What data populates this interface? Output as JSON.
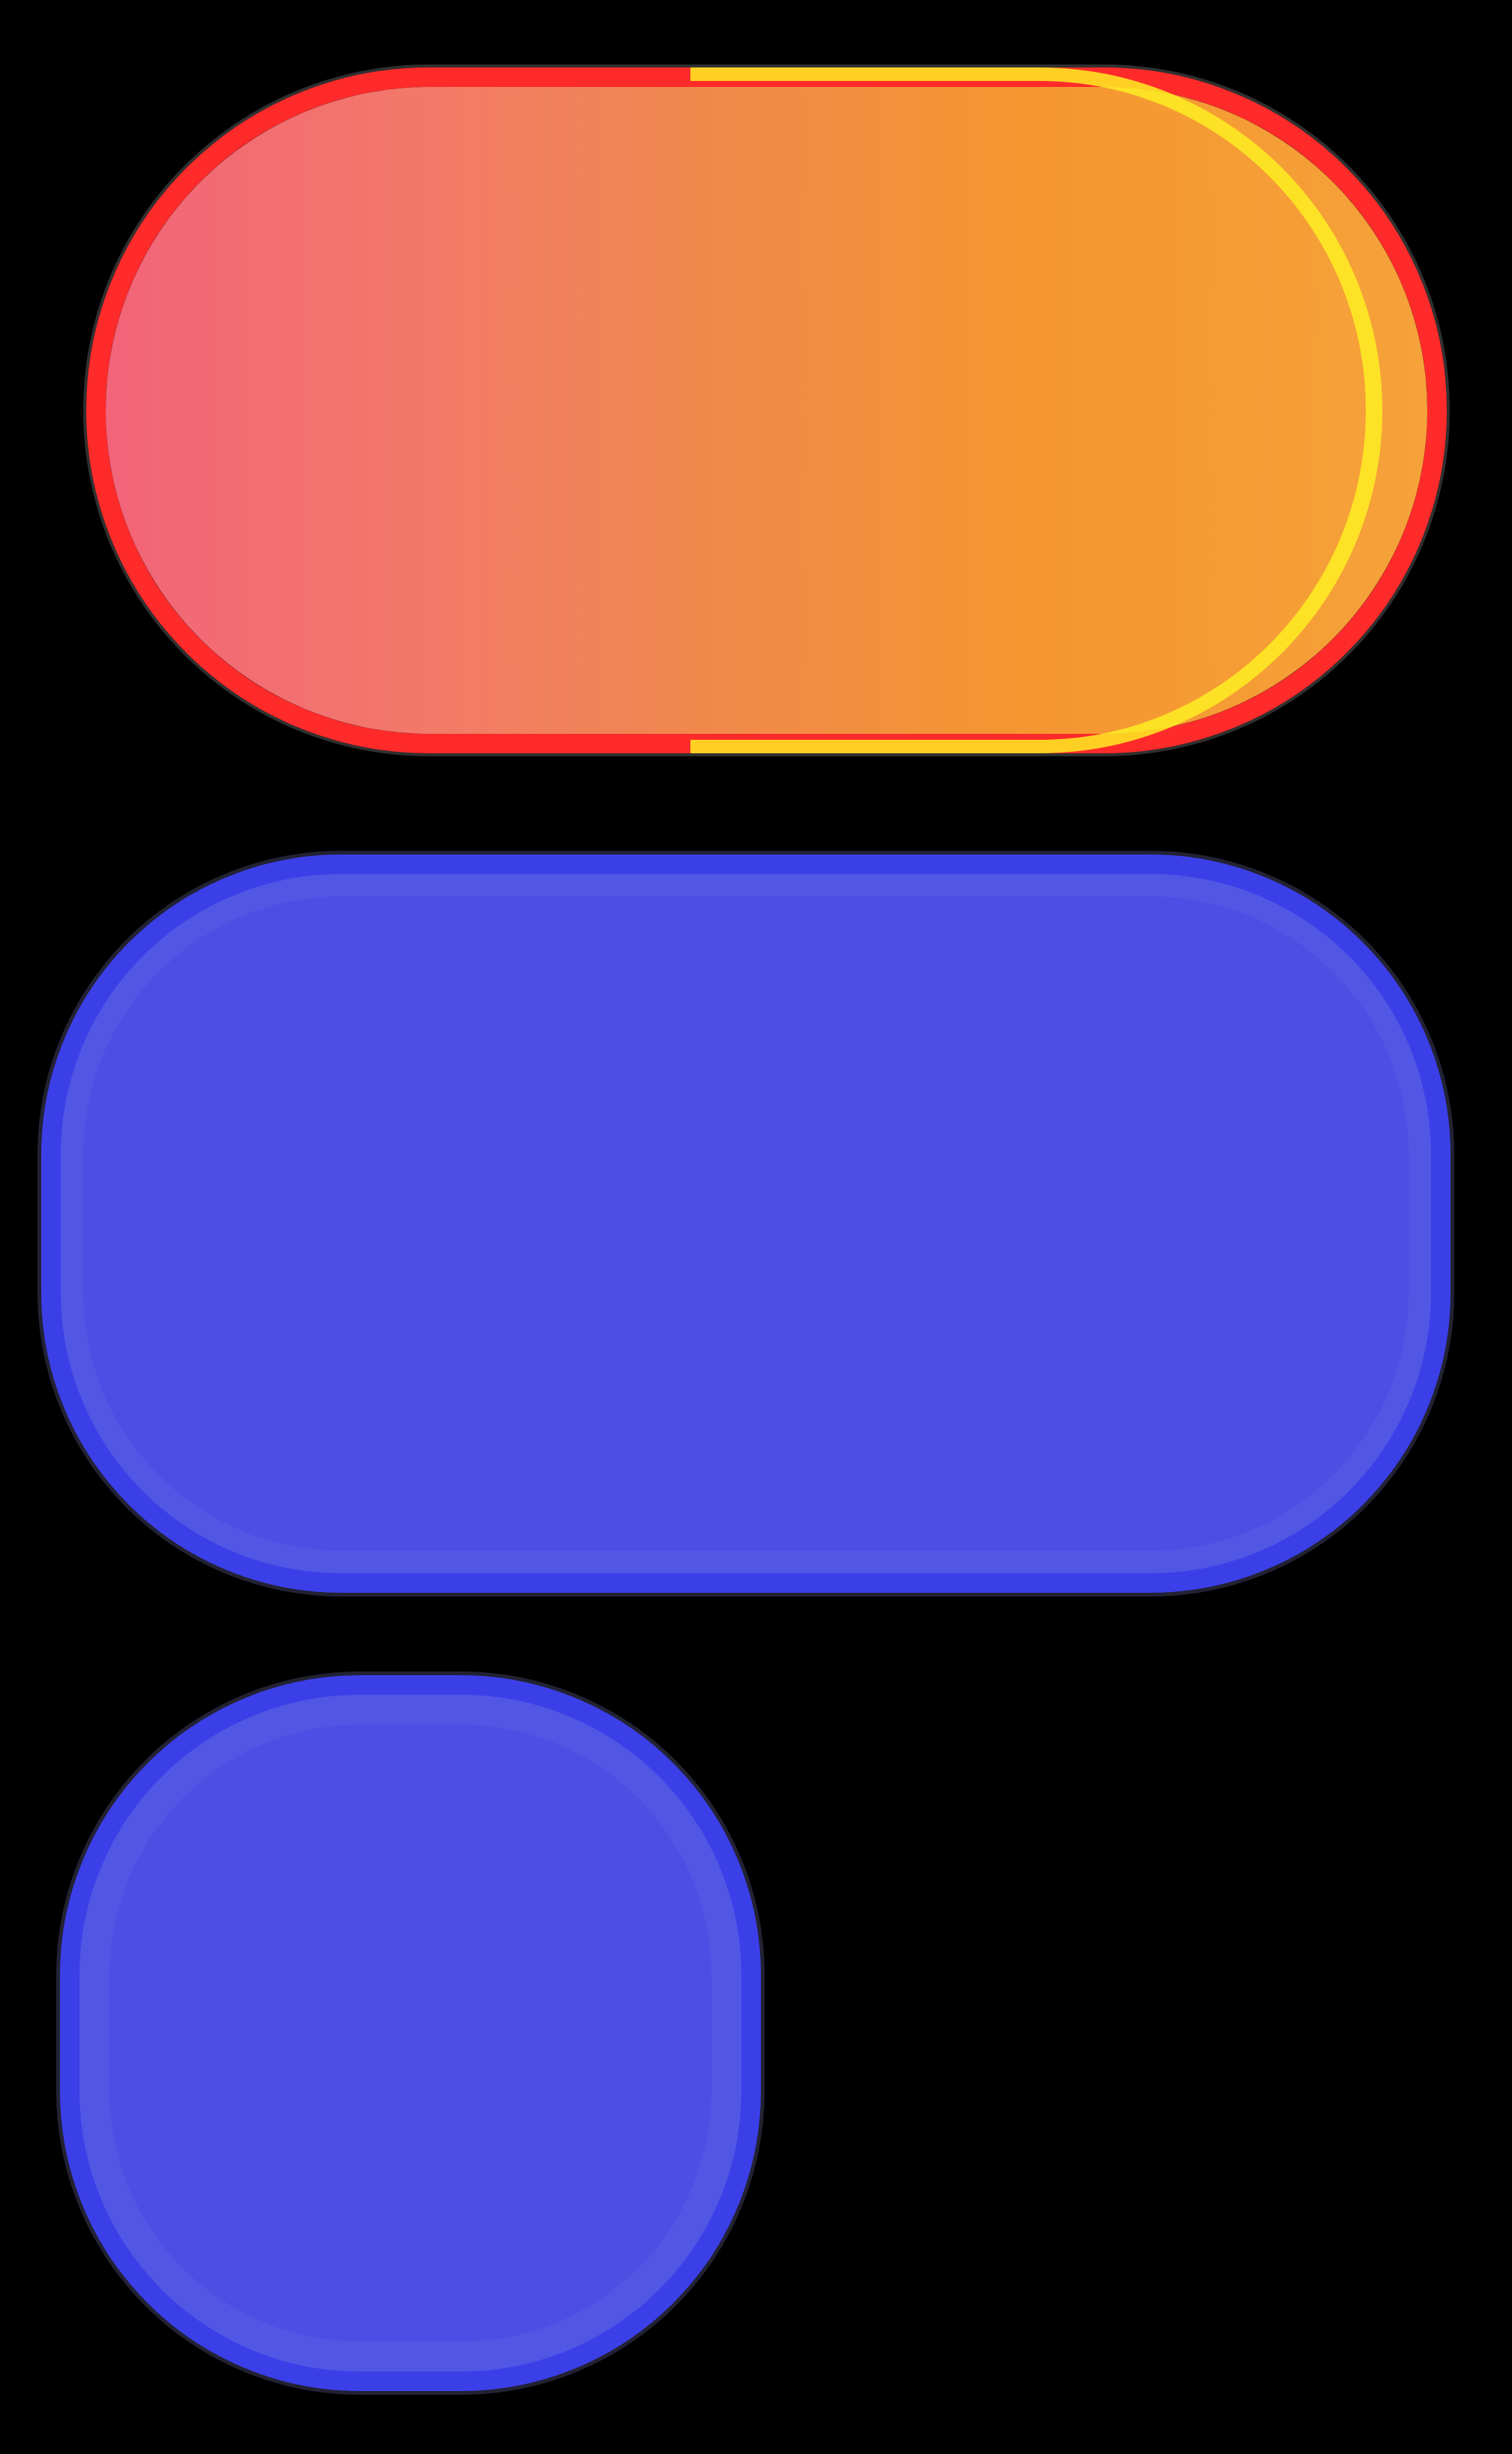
{
  "canvas": {
    "background": "#000000"
  },
  "shapes": [
    {
      "name": "orange-gradient-pill",
      "colors": {
        "fill_start": "#f2647a",
        "fill_end": "#f5a23a",
        "outline": "#ff2a2a",
        "highlight": "#ffee22"
      }
    },
    {
      "name": "blue-pill",
      "colors": {
        "fill": "#4b4fe3",
        "outline": "#3b3fe8"
      }
    },
    {
      "name": "blue-rounded-square",
      "colors": {
        "fill": "#4b4fe3",
        "outline": "#3b3fe8"
      }
    }
  ]
}
